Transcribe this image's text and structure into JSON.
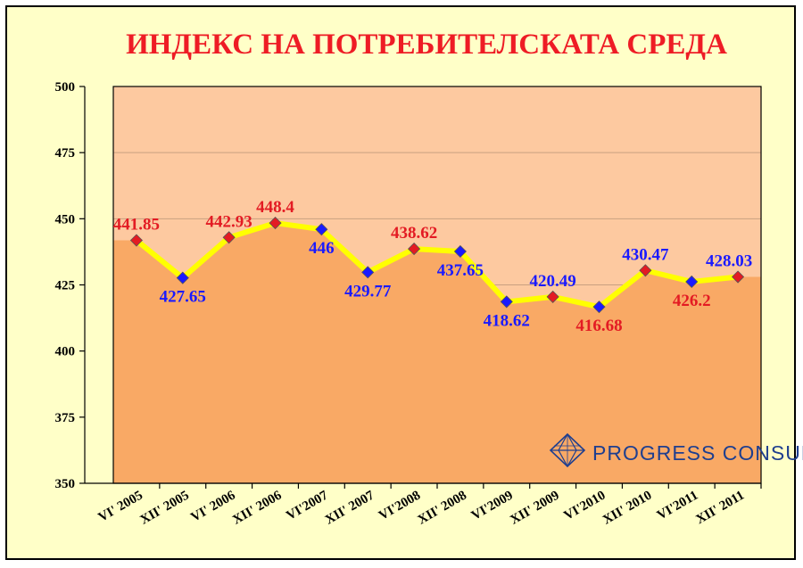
{
  "chart_data": {
    "type": "area",
    "title": "ИНДЕКС НА ПОТРЕБИТЕЛСКАТА СРЕДА",
    "xlabel": "",
    "ylabel": "",
    "ylim": [
      350,
      500
    ],
    "yticks": [
      350,
      375,
      400,
      425,
      450,
      475,
      500
    ],
    "grid": true,
    "categories": [
      "VI' 2005",
      "XII' 2005",
      "VI' 2006",
      "XII' 2006",
      "VI'2007",
      "XII' 2007",
      "VI'2008",
      "XII' 2008",
      "VI'2009",
      "XII' 2009",
      "VI'2010",
      "XII' 2010",
      "VI'2011",
      "XII' 2011"
    ],
    "values": [
      441.85,
      427.65,
      442.93,
      448.4,
      446,
      429.77,
      438.62,
      437.65,
      418.62,
      420.49,
      416.68,
      430.47,
      426.2,
      428.03
    ],
    "labels": [
      "441.85",
      "427.65",
      "442.93",
      "448.4",
      "446",
      "429.77",
      "438.62",
      "437.65",
      "418.62",
      "420.49",
      "416.68",
      "430.47",
      "426.2",
      "428.03"
    ],
    "point_colors": [
      "#e31b23",
      "#1a1aff",
      "#e31b23",
      "#e31b23",
      "#1a1aff",
      "#1a1aff",
      "#e31b23",
      "#1a1aff",
      "#1a1aff",
      "#e31b23",
      "#1a1aff",
      "#e31b23",
      "#1a1aff",
      "#e31b23"
    ],
    "label_colors": [
      "#e31b23",
      "#1a1aff",
      "#e31b23",
      "#e31b23",
      "#1a1aff",
      "#1a1aff",
      "#e31b23",
      "#1a1aff",
      "#1a1aff",
      "#1a1aff",
      "#e31b23",
      "#1a1aff",
      "#e31b23",
      "#1a1aff"
    ],
    "label_positions": [
      "above",
      "below",
      "above",
      "above",
      "below",
      "below",
      "above",
      "below",
      "below",
      "above",
      "below",
      "above",
      "below",
      "above"
    ],
    "colors": {
      "background": "#ffffc8",
      "plot_upper": "#fdc9a0",
      "area_fill": "#f9a965",
      "line": "#ffff00",
      "grid": "#c8a080"
    }
  },
  "logo": {
    "text": "PROGRESS  CONSULT",
    "icon": "diamond-logo-icon",
    "color": "#1f3f8f"
  }
}
